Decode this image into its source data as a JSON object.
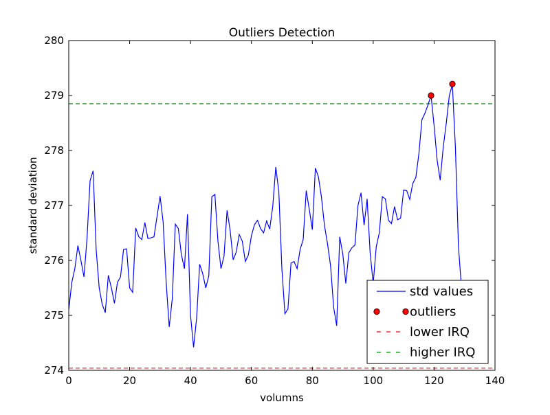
{
  "chart_data": {
    "type": "line",
    "title": "Outliers Detection",
    "xlabel": "volumns",
    "ylabel": "standard deviation",
    "xlim": [
      0,
      140
    ],
    "ylim": [
      274,
      280
    ],
    "x_ticks": [
      "0",
      "20",
      "40",
      "60",
      "80",
      "100",
      "120",
      "140"
    ],
    "y_ticks": [
      "274",
      "275",
      "276",
      "277",
      "278",
      "279",
      "280"
    ],
    "grid": false,
    "legend_position": "bottom-right",
    "series": [
      {
        "name": "std values",
        "color": "#0000ff",
        "style": "solid-line",
        "values": [
          275.1,
          275.6,
          275.85,
          276.27,
          276.0,
          275.7,
          276.4,
          277.45,
          277.63,
          276.2,
          275.5,
          275.2,
          275.05,
          275.73,
          275.5,
          275.22,
          275.6,
          275.7,
          276.2,
          276.21,
          275.5,
          275.42,
          276.59,
          276.43,
          276.38,
          276.69,
          276.4,
          276.41,
          276.43,
          276.8,
          277.17,
          276.7,
          275.6,
          274.79,
          275.3,
          276.66,
          276.58,
          276.1,
          275.85,
          276.84,
          275.0,
          274.42,
          274.95,
          275.93,
          275.76,
          275.5,
          275.72,
          277.16,
          277.2,
          276.35,
          275.85,
          276.08,
          276.91,
          276.55,
          276.01,
          276.15,
          276.47,
          276.35,
          275.98,
          276.1,
          276.45,
          276.65,
          276.73,
          276.58,
          276.5,
          276.72,
          276.57,
          276.98,
          277.7,
          277.25,
          275.85,
          275.03,
          275.12,
          275.95,
          275.98,
          275.85,
          276.2,
          276.38,
          277.27,
          276.93,
          276.56,
          277.68,
          277.52,
          277.15,
          276.63,
          276.3,
          275.9,
          275.15,
          274.81,
          276.43,
          276.12,
          275.58,
          276.14,
          276.23,
          276.28,
          277.0,
          277.23,
          276.64,
          277.12,
          276.13,
          275.58,
          276.25,
          276.5,
          277.16,
          277.12,
          276.73,
          276.67,
          276.98,
          276.74,
          276.77,
          277.28,
          277.27,
          277.11,
          277.4,
          277.51,
          277.94,
          278.56,
          278.68,
          278.83,
          279.0,
          278.45,
          277.82,
          277.46,
          278.06,
          278.5,
          279.0,
          279.2,
          278.05,
          276.25,
          275.5
        ],
        "values_note_x_start": 0
      },
      {
        "name": "outliers",
        "color": "#ff0000",
        "style": "markers",
        "points": [
          {
            "x": 119,
            "y": 279.0
          },
          {
            "x": 126,
            "y": 279.21
          }
        ]
      },
      {
        "name": "lower IRQ",
        "color": "#ff0000",
        "style": "dashed",
        "y": 274.04
      },
      {
        "name": "higher IRQ",
        "color": "#008000",
        "style": "dashed",
        "y": 278.85
      }
    ]
  }
}
